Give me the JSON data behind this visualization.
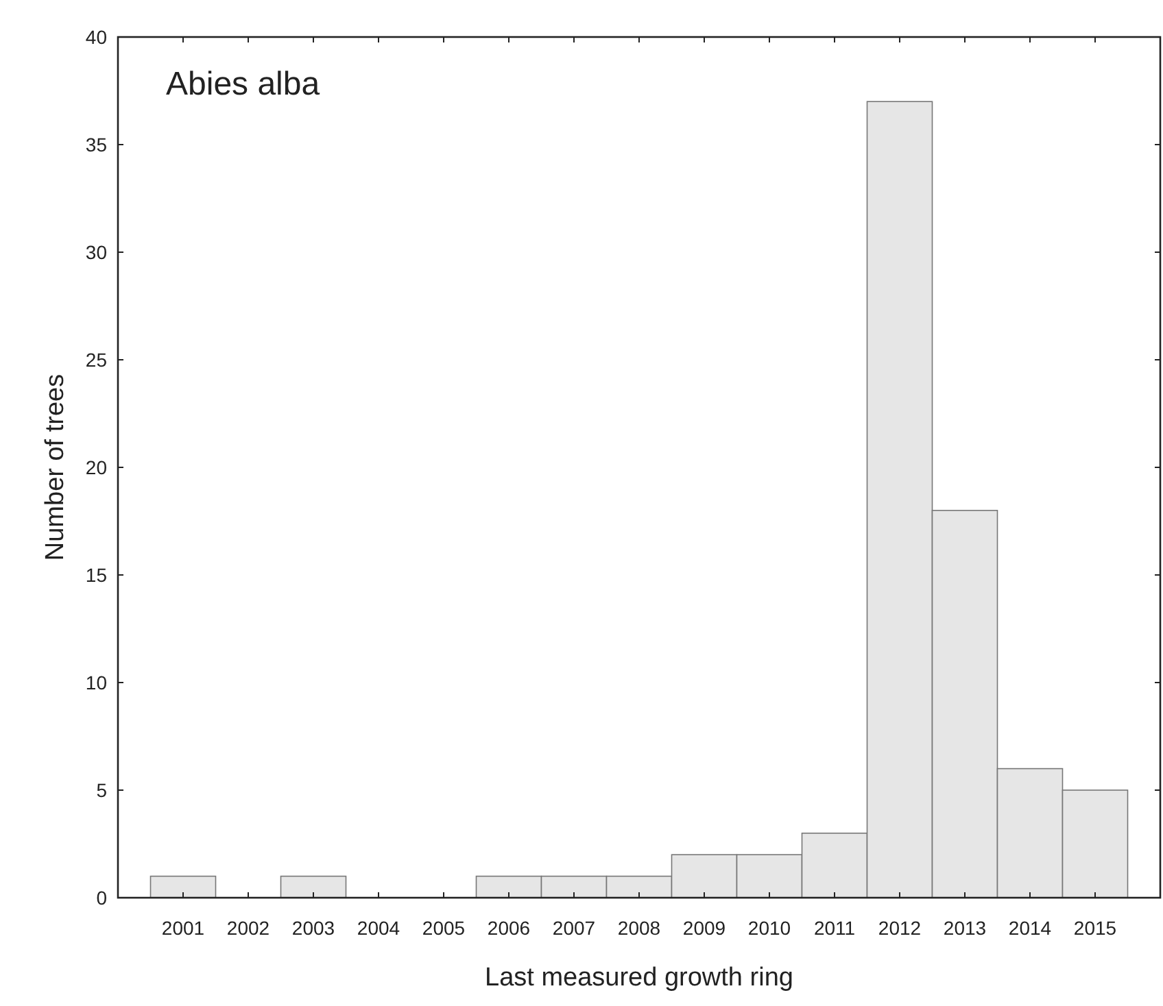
{
  "chart_data": {
    "type": "bar",
    "title": "Abies alba",
    "xlabel": "Last measured growth ring",
    "ylabel": "Number of trees",
    "categories": [
      "2001",
      "2002",
      "2003",
      "2004",
      "2005",
      "2006",
      "2007",
      "2008",
      "2009",
      "2010",
      "2011",
      "2012",
      "2013",
      "2014",
      "2015"
    ],
    "values": [
      1,
      0,
      1,
      0,
      0,
      1,
      1,
      1,
      2,
      2,
      3,
      37,
      18,
      6,
      5
    ],
    "color": "#e6e6e6",
    "ylim": [
      0,
      40
    ],
    "yticks": [
      0,
      5,
      10,
      15,
      20,
      25,
      30,
      35,
      40
    ],
    "grid": false
  }
}
